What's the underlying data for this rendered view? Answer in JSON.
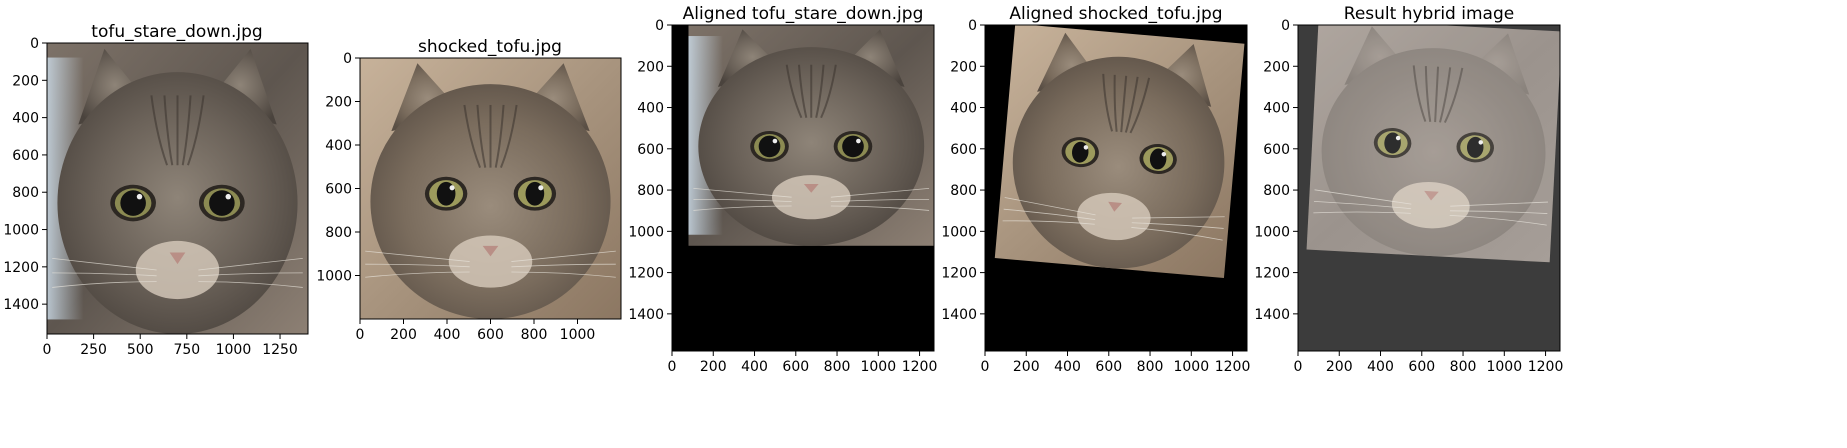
{
  "panels": [
    {
      "key": "p1",
      "title": "tofu_stare_down.jpg",
      "width": 1400,
      "height": 1560,
      "xticks": [
        0,
        250,
        500,
        750,
        1000,
        1250
      ],
      "yticks": [
        0,
        200,
        400,
        600,
        800,
        1000,
        1200,
        1400
      ],
      "content": "cat-photo",
      "photo": {
        "rotate": 0,
        "x0": 0,
        "x1": 1400,
        "y0": 0,
        "y1": 1560,
        "eyes": "dark",
        "shade": "dark"
      }
    },
    {
      "key": "p2",
      "title": "shocked_tofu.jpg",
      "width": 1200,
      "height": 1200,
      "xticks": [
        0,
        200,
        400,
        600,
        800,
        1000
      ],
      "yticks": [
        0,
        200,
        400,
        600,
        800,
        1000
      ],
      "content": "cat-photo",
      "photo": {
        "rotate": 0,
        "x0": 0,
        "x1": 1200,
        "y0": 0,
        "y1": 1200,
        "eyes": "wide",
        "shade": "warm"
      }
    },
    {
      "key": "p3",
      "title": "Aligned tofu_stare_down.jpg",
      "width": 1270,
      "height": 1580,
      "xticks": [
        0,
        200,
        400,
        600,
        800,
        1000,
        1200
      ],
      "yticks": [
        0,
        200,
        400,
        600,
        800,
        1000,
        1200,
        1400
      ],
      "background": "#000000",
      "content": "aligned-photo",
      "photo": {
        "rotate": 0,
        "x0": 80,
        "x1": 1270,
        "y0": 0,
        "y1": 1070,
        "eyes": "dark",
        "shade": "dark"
      }
    },
    {
      "key": "p4",
      "title": "Aligned shocked_tofu.jpg",
      "width": 1270,
      "height": 1580,
      "xticks": [
        0,
        200,
        400,
        600,
        800,
        1000,
        1200
      ],
      "yticks": [
        0,
        200,
        400,
        600,
        800,
        1000,
        1200,
        1400
      ],
      "background": "#000000",
      "content": "aligned-photo",
      "photo": {
        "rotate": 5,
        "x0": 95,
        "x1": 1210,
        "y0": 40,
        "y1": 1180,
        "eyes": "wide",
        "shade": "warm"
      }
    },
    {
      "key": "p5",
      "title": "Result hybrid image",
      "width": 1270,
      "height": 1580,
      "xticks": [
        0,
        200,
        400,
        600,
        800,
        1000,
        1200
      ],
      "yticks": [
        0,
        200,
        400,
        600,
        800,
        1000,
        1200,
        1400
      ],
      "background": "#3c3c3c",
      "content": "hybrid-photo",
      "photo": {
        "rotate": 3,
        "x0": 70,
        "x1": 1250,
        "y0": 0,
        "y1": 1120,
        "eyes": "wide",
        "shade": "faded"
      }
    }
  ]
}
